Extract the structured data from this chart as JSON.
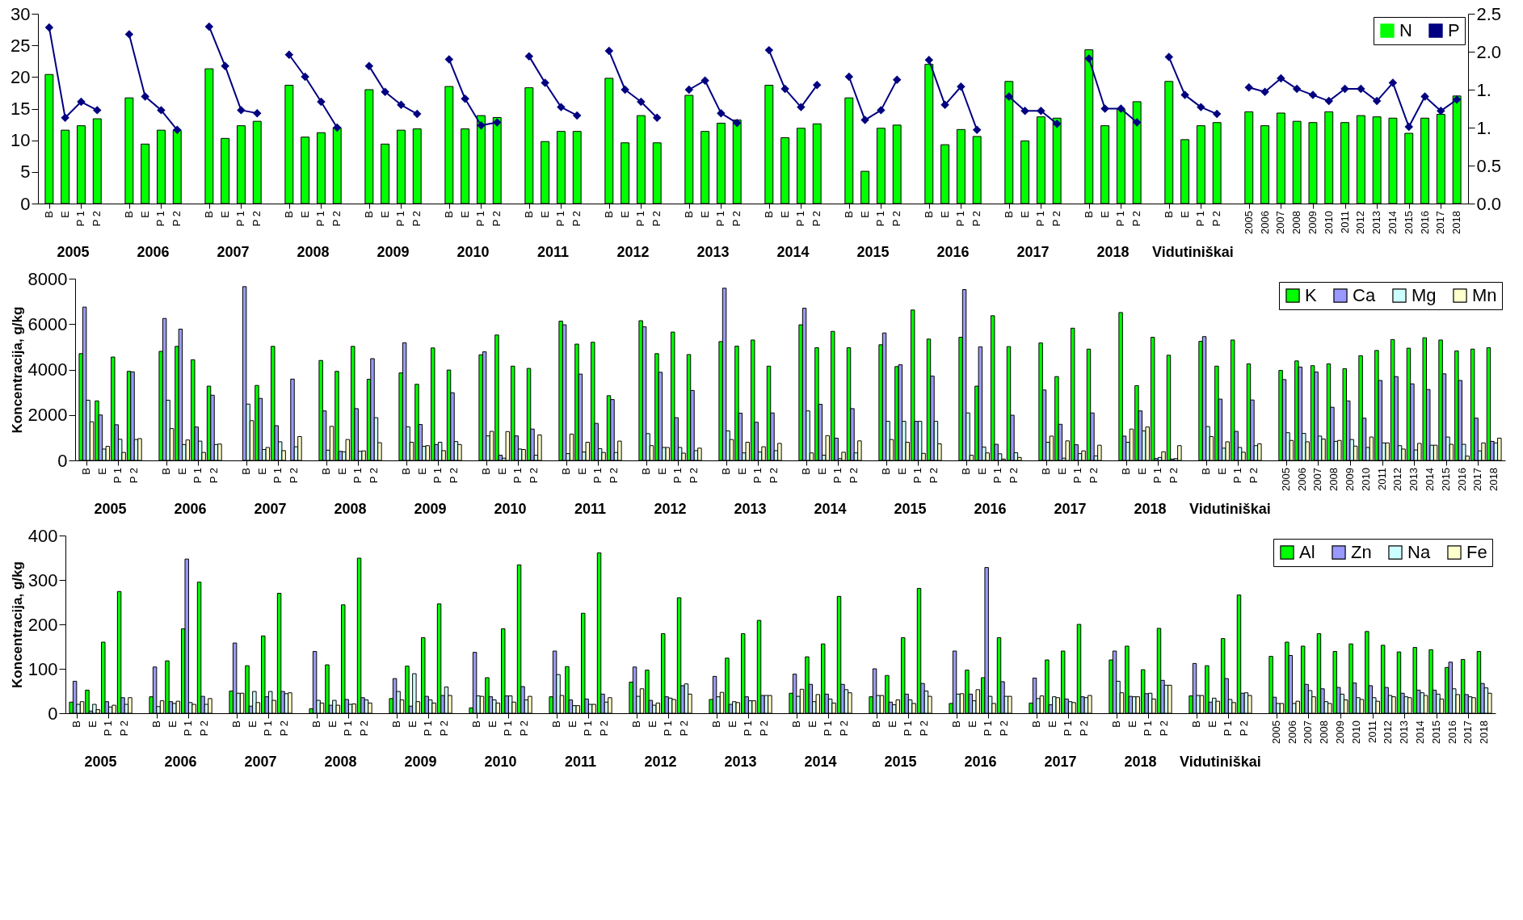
{
  "chart_data": [
    {
      "type": "bar",
      "categories": [
        "B",
        "E",
        "P 1",
        "P 2",
        null,
        "B",
        "E",
        "P 1",
        "P 2",
        null,
        "B",
        "E",
        "P 1",
        "P 2",
        null,
        "B",
        "E",
        "P 1",
        "P 2",
        null,
        "B",
        "E",
        "P 1",
        "P 2",
        null,
        "B",
        "E",
        "P 1",
        "P 2",
        null,
        "B",
        "E",
        "P 1",
        "P 2",
        null,
        "B",
        "E",
        "P 1",
        "P 2",
        null,
        "B",
        "E",
        "P 1",
        "P 2",
        null,
        "B",
        "E",
        "P 1",
        "P 2",
        null,
        "B",
        "E",
        "P 1",
        "P 2",
        null,
        "B",
        "E",
        "P 1",
        "P 2",
        null,
        "B",
        "E",
        "P 1",
        "P 2",
        null,
        "B",
        "E",
        "P 1",
        "P 2",
        null,
        "B",
        "E",
        "P 1",
        "P 2",
        null,
        "2005",
        "2006",
        "2007",
        "2008",
        "2009",
        "2010",
        "2011",
        "2012",
        "2013",
        "2014",
        "2015",
        "2016",
        "2017",
        "2018"
      ],
      "series": [
        {
          "name": "N",
          "color": "#00ff00",
          "values": [
            20.4,
            11.6,
            12.3,
            13.4,
            null,
            16.7,
            9.4,
            11.6,
            11.6,
            null,
            21.3,
            10.3,
            12.3,
            13.0,
            null,
            18.7,
            10.5,
            11.2,
            12.0,
            null,
            18.0,
            9.4,
            11.6,
            11.8,
            null,
            18.5,
            11.8,
            13.9,
            13.6,
            null,
            18.3,
            9.8,
            11.4,
            11.4,
            null,
            19.8,
            9.6,
            13.9,
            9.6,
            null,
            17.1,
            11.4,
            12.7,
            13.2,
            null,
            18.7,
            10.4,
            11.9,
            12.6,
            null,
            16.7,
            5.1,
            11.9,
            12.4,
            null,
            22.0,
            9.3,
            11.7,
            10.6,
            null,
            19.3,
            9.9,
            13.7,
            13.5,
            null,
            24.3,
            12.3,
            14.9,
            16.1,
            null,
            19.3,
            10.1,
            12.3,
            12.8,
            null,
            14.5,
            12.3,
            14.3,
            13.0,
            12.8,
            14.5,
            12.8,
            13.9,
            13.7,
            13.5,
            11.1,
            13.5,
            14.1,
            17.0
          ]
        },
        {
          "name": "P",
          "type": "line",
          "axis": "y2",
          "color": "#000080",
          "values": [
            2.32,
            1.13,
            1.34,
            1.23,
            null,
            2.23,
            1.41,
            1.23,
            0.97,
            null,
            2.33,
            1.81,
            1.23,
            1.19,
            null,
            1.96,
            1.67,
            1.34,
            1.0,
            null,
            1.81,
            1.47,
            1.3,
            1.18,
            null,
            1.9,
            1.38,
            1.03,
            1.07,
            null,
            1.94,
            1.59,
            1.27,
            1.16,
            null,
            2.01,
            1.5,
            1.34,
            1.13,
            null,
            1.5,
            1.62,
            1.19,
            1.06,
            null,
            2.02,
            1.51,
            1.27,
            1.56,
            null,
            1.67,
            1.1,
            1.23,
            1.63,
            null,
            1.89,
            1.3,
            1.54,
            0.97,
            null,
            1.41,
            1.22,
            1.22,
            1.05,
            null,
            1.91,
            1.25,
            1.25,
            1.07,
            null,
            1.93,
            1.43,
            1.27,
            1.18,
            null,
            1.53,
            1.47,
            1.65,
            1.51,
            1.43,
            1.35,
            1.51,
            1.51,
            1.35,
            1.59,
            1.01,
            1.41,
            1.22,
            1.37
          ]
        }
      ],
      "ylim": [
        0,
        30
      ],
      "yticks": [
        0,
        5,
        10,
        15,
        20,
        25,
        30
      ],
      "y2lim": [
        0,
        2.5
      ],
      "y2ticks": [
        {
          "value": 0,
          "label": "0.0"
        },
        0.5,
        {
          "value": 1,
          "label": "1."
        },
        {
          "value": 1.5,
          "label": "1."
        },
        {
          "value": 2,
          "label": "2.0"
        },
        2.5
      ],
      "marker": "diamond",
      "legend": "top right",
      "annotations": [
        "2005",
        "2006",
        "2007",
        "2008",
        "2009",
        "2010",
        "2011",
        "2012",
        "2013",
        "2014",
        "2015",
        "2016",
        "2017",
        "2018",
        "Vidutiniškai"
      ]
    },
    {
      "type": "bar",
      "ylabel": "Koncentracija, g/kg",
      "categories": [
        "B",
        "E",
        "P 1",
        "P 2",
        null,
        "B",
        "E",
        "P 1",
        "P 2",
        null,
        "B",
        "E",
        "P 1",
        "P 2",
        null,
        "B",
        "E",
        "P 1",
        "P 2",
        null,
        "B",
        "E",
        "P 1",
        "P 2",
        null,
        "B",
        "E",
        "P 1",
        "P 2",
        null,
        "B",
        "E",
        "P 1",
        "P 2",
        null,
        "B",
        "E",
        "P 1",
        "P 2",
        null,
        "B",
        "E",
        "P 1",
        "P 2",
        null,
        "B",
        "E",
        "P 1",
        "P 2",
        null,
        "B",
        "E",
        "P 1",
        "P 2",
        null,
        "B",
        "E",
        "P 1",
        "P 2",
        null,
        "B",
        "E",
        "P 1",
        "P 2",
        null,
        "B",
        "E",
        "P 1",
        "P 2",
        null,
        "B",
        "E",
        "P 1",
        "P 2",
        null,
        "2005",
        "2006",
        "2007",
        "2008",
        "2009",
        "2010",
        "2011",
        "2012",
        "2013",
        "2014",
        "2015",
        "2016",
        "2017",
        "2018"
      ],
      "series": [
        {
          "name": "K",
          "color": "#00ff00",
          "values": [
            4700,
            2620,
            4550,
            3920,
            null,
            4800,
            5020,
            4430,
            3270,
            null,
            null,
            3300,
            5020,
            null,
            null,
            4400,
            3920,
            5020,
            3570,
            null,
            3850,
            3350,
            4950,
            3980,
            null,
            4650,
            5520,
            4150,
            4050,
            null,
            6130,
            5120,
            5200,
            2850,
            null,
            6150,
            4700,
            5650,
            4660,
            null,
            5230,
            5030,
            5300,
            4150,
            null,
            5970,
            4960,
            5680,
            4960,
            null,
            5090,
            4130,
            6620,
            5340,
            null,
            5420,
            3270,
            6370,
            5010,
            null,
            5170,
            3690,
            5820,
            4900,
            null,
            6510,
            3290,
            5420,
            4630,
            null,
            5240,
            4150,
            5300,
            4250,
            null,
            3960,
            4380,
            4170,
            4250,
            4040,
            4610,
            4840,
            5320,
            4940,
            5400,
            5300,
            4820,
            4900,
            4960
          ]
        },
        {
          "name": "Ca",
          "color": "#9999ff",
          "values": [
            6750,
            2000,
            1570,
            3900,
            null,
            6250,
            5780,
            1470,
            2870,
            null,
            7650,
            2730,
            1530,
            3580,
            null,
            2180,
            400,
            2280,
            4480,
            null,
            5180,
            1580,
            700,
            2980,
            null,
            4780,
            230,
            1080,
            1380,
            null,
            5970,
            3800,
            1630,
            2680,
            null,
            5880,
            3880,
            1880,
            3080,
            null,
            7580,
            2080,
            1680,
            2090,
            null,
            6700,
            2470,
            980,
            2280,
            null,
            5610,
            4210,
            1720,
            3710,
            null,
            7520,
            5000,
            710,
            1990,
            null,
            3100,
            1590,
            690,
            2090,
            null,
            1070,
            2180,
            80,
            60,
            null,
            5450,
            2700,
            1280,
            2660,
            null,
            3560,
            4110,
            3890,
            2340,
            2620,
            1860,
            3520,
            3690,
            3370,
            3120,
            3810,
            3520,
            1860,
            840
          ]
        },
        {
          "name": "Mg",
          "color": "#ccffff",
          "values": [
            2650,
            500,
            930,
            920,
            null,
            2650,
            700,
            850,
            700,
            null,
            2480,
            480,
            820,
            600,
            null,
            450,
            380,
            400,
            1880,
            null,
            1480,
            620,
            800,
            830,
            null,
            1080,
            100,
            500,
            230,
            null,
            300,
            370,
            520,
            350,
            null,
            1180,
            570,
            570,
            430,
            null,
            1300,
            330,
            370,
            430,
            null,
            2180,
            230,
            80,
            330,
            null,
            1720,
            1720,
            1720,
            1720,
            null,
            2090,
            590,
            290,
            340,
            null,
            800,
            100,
            300,
            200,
            null,
            800,
            1300,
            130,
            80,
            null,
            1490,
            540,
            570,
            650,
            null,
            1220,
            1190,
            1070,
            840,
            920,
            570,
            770,
            650,
            460,
            670,
            1030,
            710,
            420,
            770
          ]
        },
        {
          "name": "Mn",
          "color": "#ffffcc",
          "values": [
            1700,
            620,
            350,
            960,
            null,
            1400,
            900,
            350,
            720,
            null,
            1750,
            570,
            430,
            1050,
            null,
            1500,
            920,
            420,
            780,
            null,
            800,
            650,
            430,
            700,
            null,
            1280,
            1270,
            480,
            1120,
            null,
            1160,
            800,
            350,
            850,
            null,
            650,
            570,
            320,
            540,
            null,
            920,
            800,
            600,
            750,
            null,
            330,
            1090,
            360,
            860,
            null,
            920,
            800,
            310,
            730,
            null,
            230,
            330,
            60,
            130,
            null,
            1070,
            860,
            420,
            670,
            null,
            1380,
            1470,
            380,
            650,
            null,
            1050,
            820,
            360,
            730,
            null,
            880,
            820,
            940,
            880,
            630,
            1030,
            770,
            500,
            750,
            670,
            710,
            190,
            770,
            980
          ]
        }
      ],
      "ylim": [
        0,
        8000
      ],
      "yticks": [
        0,
        2000,
        4000,
        6000,
        8000
      ],
      "legend": "top right",
      "annotations": [
        "2005",
        "2006",
        "2007",
        "2008",
        "2009",
        "2010",
        "2011",
        "2012",
        "2013",
        "2014",
        "2015",
        "2016",
        "2017",
        "2018",
        "Vidutiniškai"
      ]
    },
    {
      "type": "bar",
      "ylabel": "Koncentracija, g/kg",
      "categories": [
        "B",
        "E",
        "P 1",
        "P 2",
        null,
        "B",
        "E",
        "P 1",
        "P 2",
        null,
        "B",
        "E",
        "P 1",
        "P 2",
        null,
        "B",
        "E",
        "P 1",
        "P 2",
        null,
        "B",
        "E",
        "P 1",
        "P 2",
        null,
        "B",
        "E",
        "P 1",
        "P 2",
        null,
        "B",
        "E",
        "P 1",
        "P 2",
        null,
        "B",
        "E",
        "P 1",
        "P 2",
        null,
        "B",
        "E",
        "P 1",
        "P 2",
        null,
        "B",
        "E",
        "P 1",
        "P 2",
        null,
        "B",
        "E",
        "P 1",
        "P 2",
        null,
        "B",
        "E",
        "P 1",
        "P 2",
        null,
        "B",
        "E",
        "P 1",
        "P 2",
        null,
        "B",
        "E",
        "P 1",
        "P 2",
        null,
        "B",
        "E",
        "P 1",
        "P 2",
        null,
        "2005",
        "2006",
        "2007",
        "2008",
        "2009",
        "2010",
        "2011",
        "2012",
        "2013",
        "2014",
        "2015",
        "2016",
        "2017",
        "2018"
      ],
      "series": [
        {
          "name": "Al",
          "color": "#00ff00",
          "values": [
            25,
            52,
            160,
            274,
            null,
            37,
            118,
            190,
            295,
            null,
            50,
            107,
            174,
            270,
            null,
            10,
            109,
            244,
            349,
            null,
            33,
            106,
            170,
            246,
            null,
            12,
            80,
            190,
            334,
            null,
            37,
            105,
            225,
            361,
            null,
            70,
            97,
            179,
            260,
            null,
            31,
            124,
            179,
            209,
            null,
            45,
            127,
            156,
            263,
            null,
            37,
            85,
            170,
            281,
            null,
            22,
            97,
            80,
            170,
            null,
            23,
            120,
            140,
            200,
            null,
            120,
            151,
            98,
            191,
            null,
            39,
            107,
            168,
            266,
            null,
            128,
            160,
            151,
            179,
            139,
            156,
            184,
            153,
            138,
            148,
            143,
            103,
            121,
            139
          ]
        },
        {
          "name": "Zn",
          "color": "#9999ff",
          "values": [
            72,
            5,
            26,
            35,
            null,
            104,
            26,
            347,
            38,
            null,
            158,
            16,
            37,
            49,
            null,
            139,
            18,
            31,
            35,
            null,
            78,
            16,
            38,
            40,
            null,
            137,
            37,
            39,
            60,
            null,
            140,
            30,
            32,
            43,
            null,
            104,
            29,
            37,
            62,
            null,
            83,
            20,
            37,
            40,
            null,
            88,
            65,
            43,
            65,
            null,
            100,
            25,
            43,
            67,
            null,
            140,
            43,
            328,
            71,
            null,
            79,
            19,
            32,
            37,
            null,
            140,
            38,
            44,
            74,
            null,
            112,
            25,
            78,
            45,
            null,
            36,
            130,
            65,
            55,
            58,
            68,
            62,
            58,
            45,
            52,
            52,
            115,
            42,
            67
          ]
        },
        {
          "name": "Na",
          "color": "#ccffff",
          "values": [
            20,
            20,
            14,
            20,
            null,
            15,
            22,
            24,
            20,
            null,
            45,
            49,
            49,
            44,
            null,
            29,
            29,
            20,
            30,
            null,
            49,
            89,
            30,
            59,
            null,
            39,
            30,
            39,
            30,
            null,
            87,
            17,
            20,
            25,
            null,
            38,
            18,
            34,
            66,
            null,
            37,
            26,
            28,
            40,
            null,
            38,
            26,
            32,
            53,
            null,
            40,
            19,
            30,
            50,
            null,
            43,
            28,
            38,
            38,
            null,
            33,
            37,
            26,
            35,
            null,
            72,
            37,
            45,
            63,
            null,
            40,
            34,
            31,
            46,
            null,
            22,
            22,
            51,
            26,
            43,
            35,
            35,
            40,
            37,
            46,
            43,
            55,
            37,
            57
          ]
        },
        {
          "name": "Fe",
          "color": "#ffffcc",
          "values": [
            26,
            8,
            18,
            35,
            null,
            28,
            27,
            20,
            33,
            null,
            45,
            24,
            29,
            46,
            null,
            23,
            18,
            21,
            23,
            null,
            30,
            26,
            23,
            40,
            null,
            38,
            23,
            25,
            38,
            null,
            40,
            17,
            20,
            35,
            null,
            55,
            23,
            31,
            43,
            null,
            47,
            24,
            28,
            40,
            null,
            54,
            42,
            23,
            46,
            null,
            40,
            30,
            22,
            38,
            null,
            44,
            53,
            22,
            38,
            null,
            39,
            35,
            24,
            40,
            null,
            46,
            37,
            32,
            63,
            null,
            40,
            27,
            24,
            40,
            null,
            22,
            27,
            37,
            22,
            30,
            31,
            27,
            37,
            35,
            40,
            32,
            42,
            35,
            45
          ]
        }
      ],
      "ylim": [
        0,
        400
      ],
      "yticks": [
        0,
        100,
        200,
        300,
        400
      ],
      "legend": "top right",
      "annotations": [
        "2005",
        "2006",
        "2007",
        "2008",
        "2009",
        "2010",
        "2011",
        "2012",
        "2013",
        "2014",
        "2015",
        "2016",
        "2017",
        "2018",
        "Vidutiniškai"
      ]
    }
  ]
}
